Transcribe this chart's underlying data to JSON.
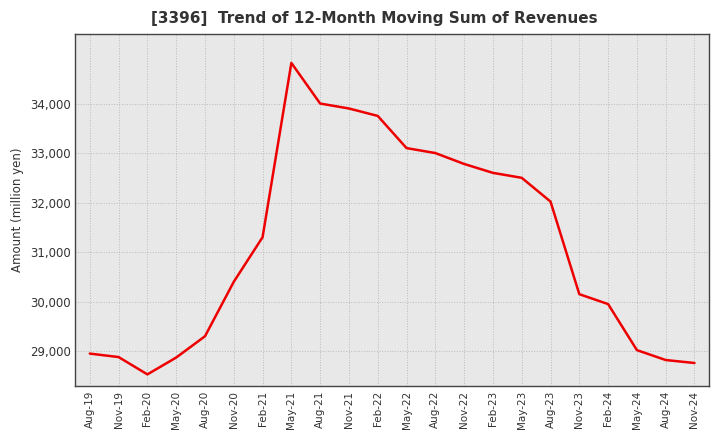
{
  "title": "[3396]  Trend of 12-Month Moving Sum of Revenues",
  "ylabel": "Amount (million yen)",
  "line_color": "#ee0000",
  "background_color": "#ffffff",
  "plot_bg_color": "#e8e8e8",
  "grid_color": "#bbbbbb",
  "x_labels": [
    "Aug-19",
    "Nov-19",
    "Feb-20",
    "May-20",
    "Aug-20",
    "Nov-20",
    "Feb-21",
    "May-21",
    "Aug-21",
    "Nov-21",
    "Feb-22",
    "May-22",
    "Aug-22",
    "Nov-22",
    "Feb-23",
    "May-23",
    "Aug-23",
    "Nov-23",
    "Feb-24",
    "May-24",
    "Aug-24",
    "Nov-24"
  ],
  "y_values": [
    28950,
    28880,
    28530,
    28870,
    29300,
    30400,
    31300,
    34820,
    34000,
    33900,
    33750,
    33100,
    33000,
    32780,
    32600,
    32500,
    32020,
    30150,
    29950,
    29020,
    28820,
    28760
  ],
  "yticks": [
    29000,
    30000,
    31000,
    32000,
    33000,
    34000
  ],
  "ylim": [
    28300,
    35400
  ],
  "title_color": "#333333",
  "tick_color": "#333333"
}
